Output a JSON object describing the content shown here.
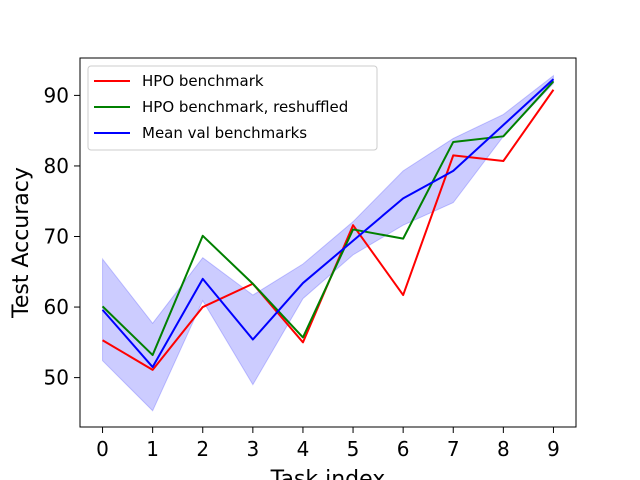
{
  "chart_data": {
    "type": "line",
    "title": "",
    "xlabel": "Task index",
    "ylabel": "Test Accuracy",
    "x": [
      0,
      1,
      2,
      3,
      4,
      5,
      6,
      7,
      8,
      9
    ],
    "xlim": [
      -0.45,
      9.45
    ],
    "ylim": [
      43,
      95.3
    ],
    "xticks": [
      0,
      1,
      2,
      3,
      4,
      5,
      6,
      7,
      8,
      9
    ],
    "yticks": [
      50,
      60,
      70,
      80,
      90
    ],
    "grid": false,
    "legend_position": "upper-left",
    "series": [
      {
        "name": "HPO benchmark",
        "color": "#ff0000",
        "values": [
          55.3,
          51.1,
          60.0,
          63.3,
          55.0,
          71.6,
          61.7,
          81.5,
          80.7,
          90.8
        ]
      },
      {
        "name": "HPO benchmark, reshuffled",
        "color": "#008000",
        "values": [
          60.1,
          53.2,
          70.1,
          63.3,
          55.7,
          71.0,
          69.7,
          83.4,
          84.2,
          92.0
        ]
      },
      {
        "name": "Mean val benchmarks",
        "color": "#0000ff",
        "values": [
          59.6,
          51.5,
          64.0,
          55.4,
          63.4,
          69.4,
          75.4,
          79.3,
          85.8,
          92.3
        ],
        "band_lower": [
          52.4,
          45.3,
          60.9,
          49.0,
          61.2,
          67.4,
          71.6,
          74.8,
          84.2,
          91.7
        ],
        "band_upper": [
          66.8,
          57.7,
          67.0,
          61.7,
          66.1,
          72.1,
          79.3,
          83.9,
          87.3,
          92.8
        ],
        "band_color": "#0000ff"
      }
    ]
  }
}
